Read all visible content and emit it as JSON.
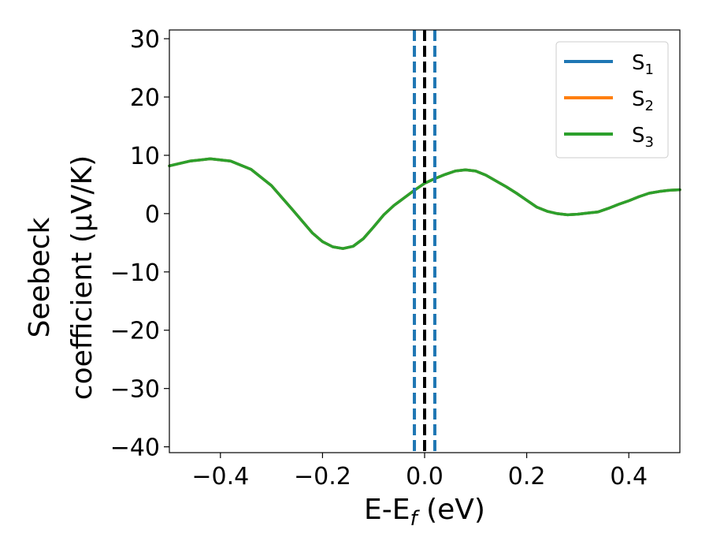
{
  "chart_data": {
    "type": "line",
    "xlabel": {
      "main": "E-E",
      "sub": "f",
      "unit": " (eV)"
    },
    "ylabel": {
      "line1": "Seebeck",
      "line2": "coefficient  (μV/K)"
    },
    "xlim": [
      -0.5,
      0.5
    ],
    "ylim": [
      -41,
      31.5
    ],
    "xticks": [
      -0.4,
      -0.2,
      0.0,
      0.2,
      0.4
    ],
    "xtick_labels": [
      "−0.4",
      "−0.2",
      "0.0",
      "0.2",
      "0.4"
    ],
    "yticks": [
      -40,
      -30,
      -20,
      -10,
      0,
      10,
      20,
      30
    ],
    "ytick_labels": [
      "−40",
      "−30",
      "−20",
      "−10",
      "0",
      "10",
      "20",
      "30"
    ],
    "grid": false,
    "legend_position": "top-right",
    "x": [
      -0.5,
      -0.46,
      -0.42,
      -0.38,
      -0.34,
      -0.3,
      -0.26,
      -0.22,
      -0.2,
      -0.18,
      -0.16,
      -0.14,
      -0.12,
      -0.1,
      -0.08,
      -0.06,
      -0.04,
      -0.02,
      0.0,
      0.02,
      0.04,
      0.06,
      0.08,
      0.1,
      0.12,
      0.14,
      0.16,
      0.18,
      0.2,
      0.22,
      0.24,
      0.26,
      0.28,
      0.3,
      0.32,
      0.34,
      0.36,
      0.38,
      0.4,
      0.42,
      0.44,
      0.46,
      0.48,
      0.5
    ],
    "series": [
      {
        "name": "S",
        "sub": "1",
        "color": "#1f77b4",
        "values": [
          8.2,
          9.0,
          9.4,
          9.0,
          7.6,
          4.8,
          0.8,
          -3.3,
          -4.8,
          -5.7,
          -6.0,
          -5.6,
          -4.3,
          -2.3,
          -0.2,
          1.4,
          2.7,
          4.0,
          5.2,
          6.0,
          6.7,
          7.3,
          7.5,
          7.3,
          6.6,
          5.6,
          4.6,
          3.5,
          2.3,
          1.1,
          0.4,
          0.0,
          -0.2,
          -0.1,
          0.1,
          0.3,
          0.9,
          1.6,
          2.2,
          2.9,
          3.5,
          3.8,
          4.0,
          4.1
        ]
      },
      {
        "name": "S",
        "sub": "2",
        "color": "#ff7f0e",
        "values": [
          8.2,
          9.0,
          9.4,
          9.0,
          7.6,
          4.8,
          0.8,
          -3.3,
          -4.8,
          -5.7,
          -6.0,
          -5.6,
          -4.3,
          -2.3,
          -0.2,
          1.4,
          2.7,
          4.0,
          5.2,
          6.0,
          6.7,
          7.3,
          7.5,
          7.3,
          6.6,
          5.6,
          4.6,
          3.5,
          2.3,
          1.1,
          0.4,
          0.0,
          -0.2,
          -0.1,
          0.1,
          0.3,
          0.9,
          1.6,
          2.2,
          2.9,
          3.5,
          3.8,
          4.0,
          4.1
        ]
      },
      {
        "name": "S",
        "sub": "3",
        "color": "#2ca02c",
        "values": [
          8.2,
          9.0,
          9.4,
          9.0,
          7.6,
          4.8,
          0.8,
          -3.3,
          -4.8,
          -5.7,
          -6.0,
          -5.6,
          -4.3,
          -2.3,
          -0.2,
          1.4,
          2.7,
          4.0,
          5.2,
          6.0,
          6.7,
          7.3,
          7.5,
          7.3,
          6.6,
          5.6,
          4.6,
          3.5,
          2.3,
          1.1,
          0.4,
          0.0,
          -0.2,
          -0.1,
          0.1,
          0.3,
          0.9,
          1.6,
          2.2,
          2.9,
          3.5,
          3.8,
          4.0,
          4.1
        ]
      }
    ],
    "vlines": [
      {
        "x": -0.02,
        "color": "#1f77b4",
        "style": "dashed"
      },
      {
        "x": 0.0,
        "color": "#000000",
        "style": "dashed"
      },
      {
        "x": 0.02,
        "color": "#1f77b4",
        "style": "dashed"
      }
    ]
  }
}
